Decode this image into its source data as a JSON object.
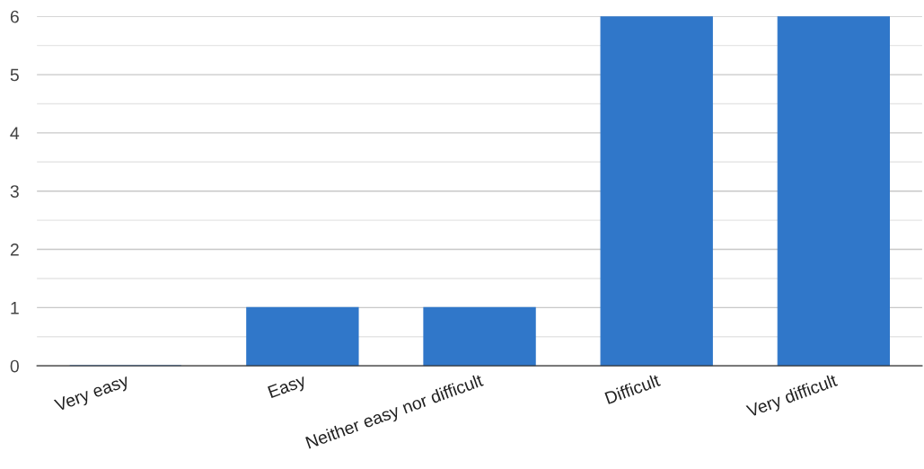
{
  "chart_data": {
    "type": "bar",
    "categories": [
      "Very easy",
      "Easy",
      "Neither easy nor difficult",
      "Difficult",
      "Very difficult"
    ],
    "values": [
      0,
      1,
      1,
      6,
      6
    ],
    "color": "#3077c9",
    "ylim": [
      0,
      6
    ],
    "yticks": [
      0,
      {
        "value": 0.5,
        "label": null
      },
      1,
      {
        "value": 1.5,
        "label": null
      },
      2,
      {
        "value": 2.5,
        "label": null
      },
      3,
      {
        "value": 3.5,
        "label": null
      },
      4,
      {
        "value": 4.5,
        "label": null
      },
      5,
      {
        "value": 5.5,
        "label": null
      },
      6
    ],
    "grid": "y"
  }
}
